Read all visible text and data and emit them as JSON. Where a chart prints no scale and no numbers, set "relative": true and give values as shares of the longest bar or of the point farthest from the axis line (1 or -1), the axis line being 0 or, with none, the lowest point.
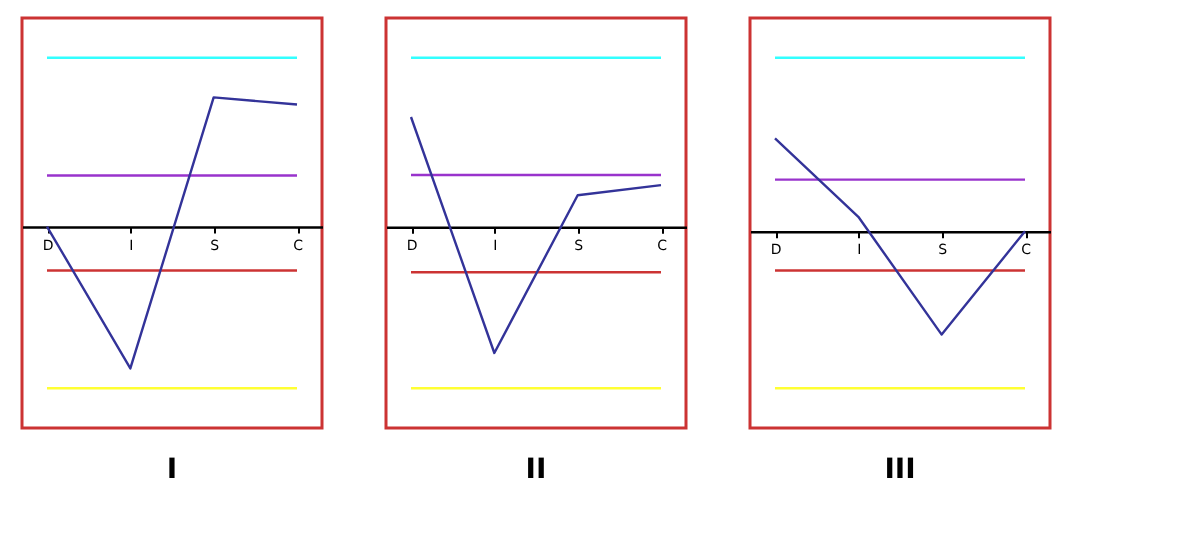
{
  "chart_data": [
    {
      "type": "line",
      "title": "I",
      "relative": true,
      "categories": [
        "D",
        "I",
        "S",
        "C"
      ],
      "series": [
        {
          "color": "#333399",
          "values": [
            0,
            -1,
            0.91,
            0.86
          ]
        }
      ],
      "ref_lines": [
        {
          "axis": "y",
          "value": 1.19,
          "color": "#33ffff"
        },
        {
          "axis": "y",
          "value": 0.36,
          "color": "#9933cc"
        },
        {
          "axis": "y",
          "value": -0.31,
          "color": "#cc3333"
        },
        {
          "axis": "y",
          "value": -1.14,
          "color": "#ffff33"
        }
      ],
      "marker": "none"
    },
    {
      "type": "line",
      "title": "II",
      "relative": true,
      "categories": [
        "D",
        "I",
        "S",
        "C"
      ],
      "series": [
        {
          "color": "#333399",
          "values": [
            0.87,
            -1,
            0.25,
            0.33
          ]
        }
      ],
      "ref_lines": [
        {
          "axis": "y",
          "value": 1.34,
          "color": "#33ffff"
        },
        {
          "axis": "y",
          "value": 0.41,
          "color": "#9933cc"
        },
        {
          "axis": "y",
          "value": -0.36,
          "color": "#cc3333"
        },
        {
          "axis": "y",
          "value": -1.28,
          "color": "#ffff33"
        }
      ],
      "marker": "none"
    },
    {
      "type": "line",
      "title": "III",
      "relative": true,
      "categories": [
        "D",
        "I",
        "S",
        "C"
      ],
      "series": [
        {
          "color": "#333399",
          "values": [
            0.9,
            0.14,
            -1,
            0
          ]
        }
      ],
      "ref_lines": [
        {
          "axis": "y",
          "value": 1.68,
          "color": "#33ffff"
        },
        {
          "axis": "y",
          "value": 0.5,
          "color": "#9933cc"
        },
        {
          "axis": "y",
          "value": -0.38,
          "color": "#cc3333"
        },
        {
          "axis": "y",
          "value": -1.52,
          "color": "#ffff33"
        }
      ],
      "marker": "none"
    }
  ]
}
